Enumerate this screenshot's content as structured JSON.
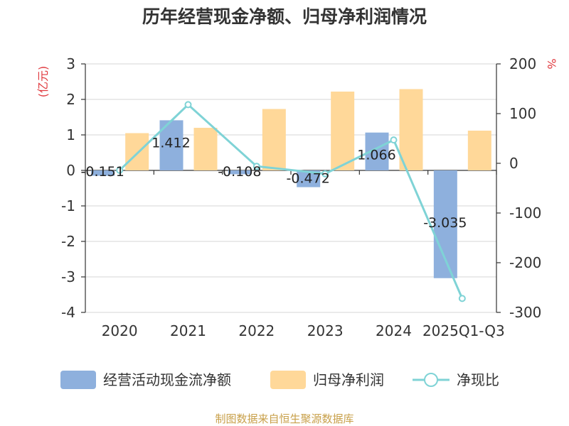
{
  "chart_data": {
    "type": "bar",
    "title": "历年经营现金净额、归母净利润情况",
    "categories": [
      "2020",
      "2021",
      "2022",
      "2023",
      "2024",
      "2025Q1-Q3"
    ],
    "y_left": {
      "unit": "(亿元)",
      "ylim": [
        -4,
        3
      ],
      "ticks": [
        "3",
        "2",
        "1",
        "0",
        "-1",
        "-2",
        "-3",
        "-4"
      ]
    },
    "y_right": {
      "unit": "%",
      "ylim": [
        -300,
        200
      ],
      "ticks": [
        "200",
        "100",
        "0",
        "-100",
        "-200",
        "-300"
      ]
    },
    "series": [
      {
        "name": "经营活动现金流净额",
        "axis": "left",
        "color": "#8eb0dd",
        "values": [
          -0.151,
          1.412,
          -0.108,
          -0.472,
          1.066,
          -3.035
        ],
        "labels": [
          "-0.151",
          "1.412",
          "-0.108",
          "-0.472",
          "1.066",
          "-3.035"
        ]
      },
      {
        "name": "归母净利润",
        "axis": "left",
        "color": "#ffd899",
        "values": [
          1.05,
          1.2,
          1.73,
          2.22,
          2.29,
          1.12
        ]
      },
      {
        "name": "净现比",
        "axis": "right",
        "type": "line",
        "color": "#7fd3d6",
        "values": [
          -14,
          118,
          -6,
          -21,
          47,
          -272
        ]
      }
    ],
    "source": "制图数据来自恒生聚源数据库"
  }
}
